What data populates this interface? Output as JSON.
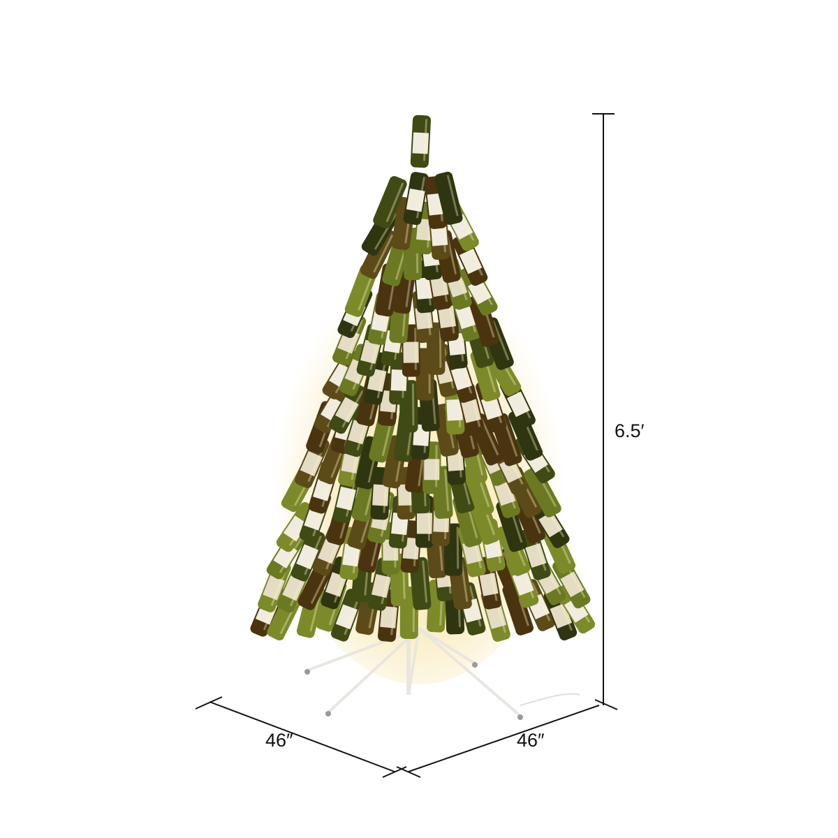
{
  "dimensions": {
    "height": "6.5′",
    "depth": "46″",
    "width": "46″"
  },
  "colors": {
    "bottle_green": "#3f4a14",
    "bottle_amber": "#4a3410",
    "bottle_light_green": "#7c8a2a",
    "glow": "#fff3c4",
    "stand": "#f4f2ee",
    "dimension_line": "#111111"
  }
}
